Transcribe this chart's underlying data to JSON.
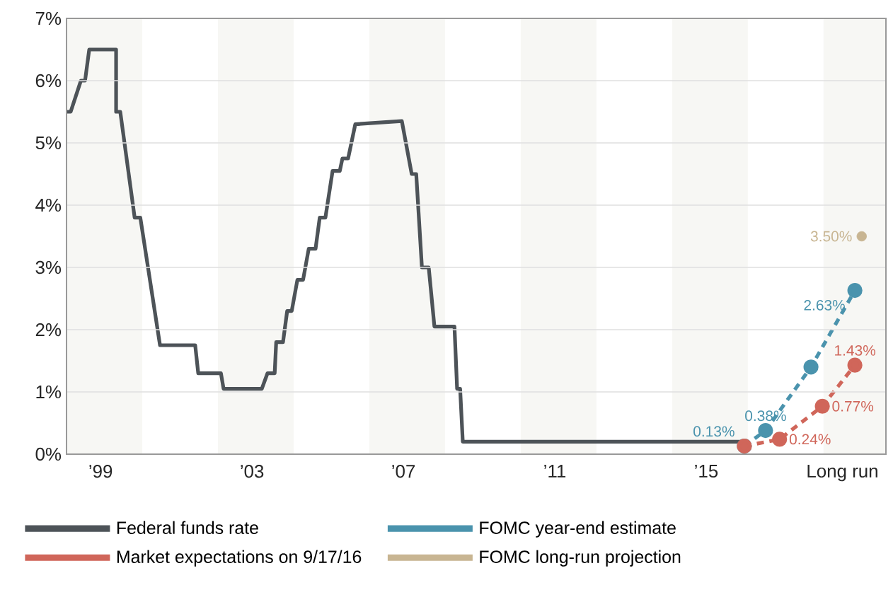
{
  "chart_data": {
    "type": "line",
    "x": [
      1998.1,
      1998.21,
      1998.48,
      1998.59,
      1998.7,
      1999.41,
      1999.41,
      1999.52,
      1999.9,
      2000.05,
      2000.57,
      2001.5,
      2001.58,
      2002.18,
      2002.25,
      2003.26,
      2003.41,
      2003.6,
      2003.64,
      2003.82,
      2003.93,
      2004.05,
      2004.2,
      2004.35,
      2004.5,
      2004.68,
      2004.79,
      2004.94,
      2005.13,
      2005.32,
      2005.39,
      2005.54,
      2005.73,
      2006.96,
      2007.22,
      2007.34,
      2007.49,
      2007.67,
      2007.82,
      2008.35,
      2008.42,
      2008.5,
      2008.57,
      2016.01
    ],
    "series": [
      {
        "name": "Federal funds rate",
        "color": "#4d5358",
        "line_style": "solid",
        "marker": "none",
        "values": [
          5.5,
          5.5,
          6.0,
          6.0,
          6.5,
          6.5,
          5.5,
          5.5,
          3.8,
          3.8,
          1.75,
          1.75,
          1.3,
          1.3,
          1.05,
          1.05,
          1.3,
          1.3,
          1.8,
          1.8,
          2.3,
          2.3,
          2.8,
          2.8,
          3.3,
          3.3,
          3.8,
          3.8,
          4.55,
          4.55,
          4.75,
          4.75,
          5.3,
          5.35,
          4.5,
          4.5,
          3.0,
          3.0,
          2.05,
          2.05,
          1.05,
          1.05,
          0.2,
          0.2
        ]
      },
      {
        "name": "FOMC year-end estimate",
        "color": "#4a93ad",
        "line_style": "dashed",
        "marker": "circle",
        "x": [
          2016.01,
          2016.57,
          2017.77,
          2018.93
        ],
        "values": [
          0.13,
          0.38,
          1.4,
          2.63
        ],
        "value_labels": [
          "0.13%",
          "0.38%",
          null,
          "2.63%"
        ]
      },
      {
        "name": "Market expectations on 9/17/16",
        "color": "#d0665a",
        "line_style": "dashed",
        "marker": "circle",
        "x": [
          2016.01,
          2016.94,
          2018.07,
          2018.93
        ],
        "values": [
          0.13,
          0.24,
          0.77,
          1.43
        ],
        "value_labels": [
          null,
          "0.24%",
          "0.77%",
          "1.43%"
        ]
      },
      {
        "name": "FOMC long-run projection",
        "type": "scatter",
        "color": "#c8b592",
        "marker": "circle",
        "x": [
          2019.11
        ],
        "values": [
          3.5
        ],
        "value_labels": [
          "3.50%"
        ]
      }
    ],
    "xlim": [
      1998.1,
      2019.75
    ],
    "xticks": [
      {
        "value": 1999,
        "label": "’99"
      },
      {
        "value": 2003,
        "label": "’03"
      },
      {
        "value": 2007,
        "label": "’07"
      },
      {
        "value": 2011,
        "label": "’11"
      },
      {
        "value": 2015,
        "label": "’15"
      },
      {
        "value": 2018.6,
        "label": "Long run"
      }
    ],
    "ylim": [
      0,
      7
    ],
    "yticks": [
      {
        "value": 0,
        "label": "0%"
      },
      {
        "value": 1,
        "label": "1%"
      },
      {
        "value": 2,
        "label": "2%"
      },
      {
        "value": 3,
        "label": "3%"
      },
      {
        "value": 4,
        "label": "4%"
      },
      {
        "value": 5,
        "label": "5%"
      },
      {
        "value": 6,
        "label": "6%"
      },
      {
        "value": 7,
        "label": "7%"
      }
    ],
    "grid": "y",
    "legend": "bottom",
    "bands": [
      {
        "axis": "x",
        "from": 1998.1,
        "to": 2000.1,
        "color": "#f7f7f4"
      },
      {
        "axis": "x",
        "from": 2002.1,
        "to": 2004.1,
        "color": "#f7f7f4"
      },
      {
        "axis": "x",
        "from": 2006.1,
        "to": 2008.1,
        "color": "#f7f7f4"
      },
      {
        "axis": "x",
        "from": 2010.1,
        "to": 2012.1,
        "color": "#f7f7f4"
      },
      {
        "axis": "x",
        "from": 2014.1,
        "to": 2016.1,
        "color": "#f7f7f4"
      },
      {
        "axis": "x",
        "from": 2018.1,
        "to": 2019.75,
        "color": "#f7f7f4"
      }
    ]
  }
}
